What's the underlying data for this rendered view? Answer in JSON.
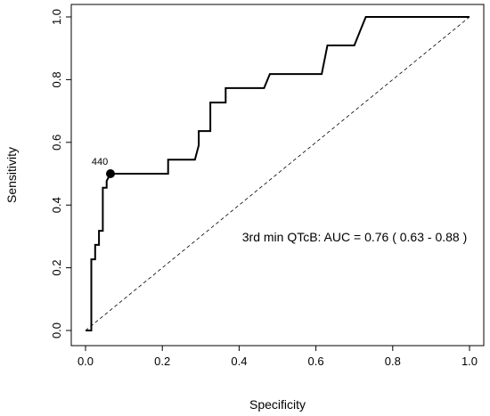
{
  "chart_data": {
    "type": "line",
    "xlabel": "Specificity",
    "ylabel": "Sensitivity",
    "xlim": [
      0,
      1
    ],
    "ylim": [
      0,
      1
    ],
    "xticks": [
      "0.0",
      "0.2",
      "0.4",
      "0.6",
      "0.8",
      "1.0"
    ],
    "yticks": [
      "0.0",
      "0.2",
      "0.4",
      "0.6",
      "0.8",
      "1.0"
    ],
    "grid": false,
    "annotation": "3rd min QTcB: AUC = 0.76 ( 0.63 - 0.88 )",
    "highlight_point": {
      "label": "440",
      "x": 0.065,
      "y": 0.5
    },
    "reference_line": {
      "style": "dashed",
      "from": [
        0,
        0
      ],
      "to": [
        1,
        1
      ]
    },
    "series": [
      {
        "x": [
          0.0,
          0.015,
          0.015,
          0.025,
          0.025,
          0.035,
          0.035,
          0.045,
          0.045,
          0.055,
          0.055,
          0.065,
          0.215,
          0.215,
          0.285,
          0.295,
          0.295,
          0.325,
          0.325,
          0.365,
          0.365,
          0.465,
          0.48,
          0.615,
          0.63,
          0.7,
          0.715,
          0.715,
          0.73,
          0.73,
          1.0
        ],
        "y": [
          0.0,
          0.0,
          0.227,
          0.227,
          0.273,
          0.273,
          0.318,
          0.318,
          0.455,
          0.455,
          0.477,
          0.5,
          0.5,
          0.545,
          0.545,
          0.591,
          0.636,
          0.636,
          0.727,
          0.727,
          0.773,
          0.773,
          0.818,
          0.818,
          0.909,
          0.909,
          0.955,
          0.955,
          1.0,
          1.0,
          1.0
        ]
      }
    ]
  }
}
